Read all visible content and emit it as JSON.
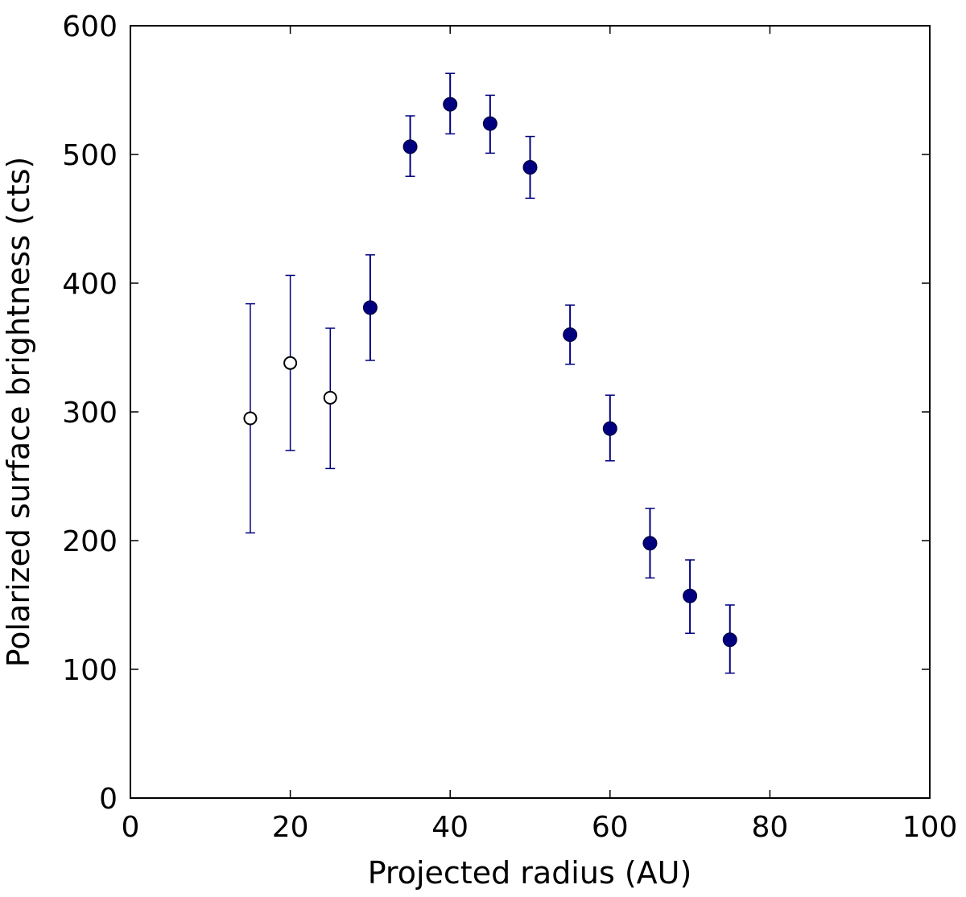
{
  "chart_data": {
    "type": "scatter",
    "title": "",
    "xlabel": "Projected radius (AU)",
    "ylabel": "Polarized surface brightness (cts)",
    "xlim": [
      0,
      100
    ],
    "ylim": [
      0,
      600
    ],
    "xticks": [
      0,
      20,
      40,
      60,
      80,
      100
    ],
    "yticks": [
      0,
      100,
      200,
      300,
      400,
      500,
      600
    ],
    "grid": false,
    "legend": "none",
    "marker_color": "#00007f",
    "errorbar_color": "#00007f",
    "open_marker_fill": "#ffffff",
    "series": [
      {
        "marker": "open-circle",
        "x": [
          15,
          20,
          25
        ],
        "y": [
          295,
          338,
          311
        ],
        "yerr_low": [
          206,
          270,
          256
        ],
        "yerr_high": [
          384,
          406,
          365
        ]
      },
      {
        "marker": "filled-circle",
        "x": [
          30,
          35,
          40,
          45,
          50,
          55,
          60,
          65,
          70,
          75
        ],
        "y": [
          381,
          506,
          539,
          524,
          490,
          360,
          287,
          198,
          157,
          123
        ],
        "yerr_low": [
          340,
          483,
          516,
          501,
          466,
          337,
          262,
          171,
          128,
          97
        ],
        "yerr_high": [
          422,
          530,
          563,
          546,
          514,
          383,
          313,
          225,
          185,
          150
        ]
      }
    ]
  }
}
